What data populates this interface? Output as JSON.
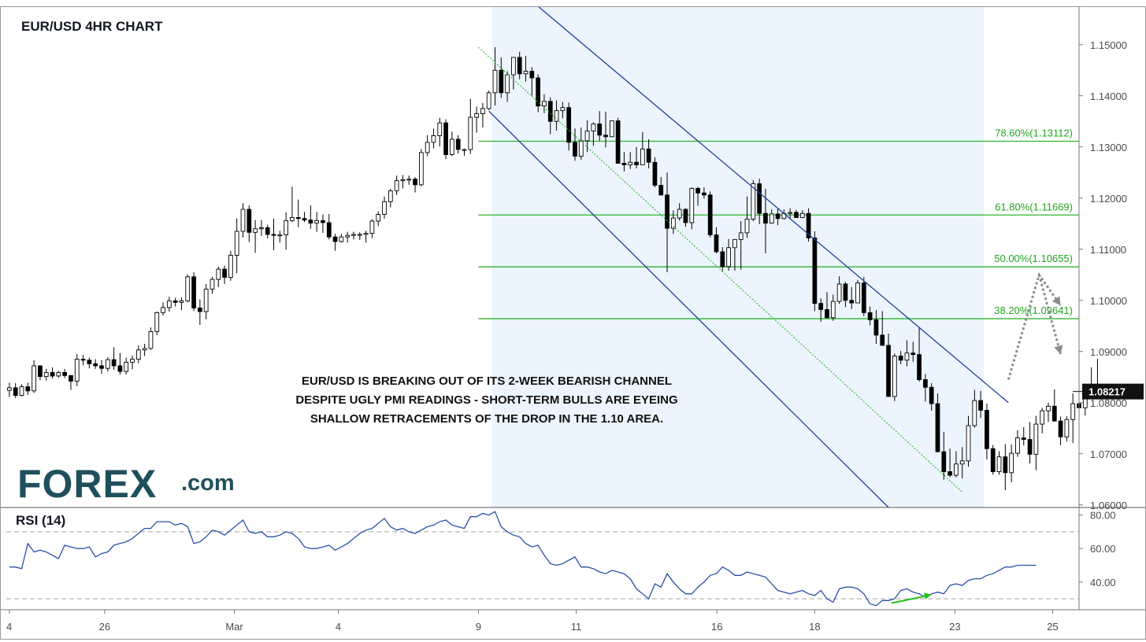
{
  "chart_data": {
    "type": "candlestick",
    "title": "EUR/USD 4HR CHART",
    "annotation": [
      "EUR/USD IS BREAKING OUT OF ITS 2-WEEK BEARISH CHANNEL",
      "DESPITE UGLY PMI READINGS - SHORT-TERM BULLS ARE EYEING",
      "SHALLOW RETRACEMENTS OF THE DROP IN THE 1.10 AREA."
    ],
    "logo": {
      "main": "FOREX",
      "suffix": ".com"
    },
    "y_axis": {
      "ylim": [
        1.0595,
        1.1575
      ],
      "ticks": [
        1.06,
        1.07,
        1.08,
        1.09,
        1.1,
        1.11,
        1.12,
        1.13,
        1.14,
        1.15
      ],
      "tick_labels": [
        "1.06000",
        "1.07000",
        "1.08000",
        "1.09000",
        "1.10000",
        "1.11000",
        "1.12000",
        "1.13000",
        "1.14000",
        "1.15000"
      ]
    },
    "x_axis": {
      "bar_range": [
        -0.5,
        174
      ],
      "tick_labels": [
        {
          "label": "4",
          "bar": 0
        },
        {
          "label": "26",
          "bar": 15.5
        },
        {
          "label": "Mar",
          "bar": 36.6
        },
        {
          "label": "4",
          "bar": 53.5
        },
        {
          "label": "9",
          "bar": 76.3
        },
        {
          "label": "11",
          "bar": 92.2
        },
        {
          "label": "16",
          "bar": 115.1
        },
        {
          "label": "18",
          "bar": 131
        },
        {
          "label": "23",
          "bar": 153.8
        },
        {
          "label": "25",
          "bar": 169.7
        }
      ]
    },
    "current_price": 1.08217,
    "current_price_label": "1.08217",
    "fib_levels": [
      {
        "label": "78.60%(1.13112)",
        "value": 1.13112
      },
      {
        "label": "61.80%(1.11669)",
        "value": 1.11669
      },
      {
        "label": "50.00%(1.10655)",
        "value": 1.10655
      },
      {
        "label": "38.20%(1.09641)",
        "value": 1.09641
      }
    ],
    "fib_start_bar": 76.3,
    "channel": {
      "upper": [
        [
          86,
          1.1575
        ],
        [
          162.5,
          1.08
        ]
      ],
      "lower": [
        [
          78,
          1.137
        ],
        [
          143,
          1.0595
        ]
      ],
      "shade_bars": [
        78.5,
        158.5
      ],
      "midline": [
        [
          76.3,
          1.1495
        ],
        [
          155,
          1.0625
        ]
      ]
    },
    "projection": [
      [
        162.5,
        1.0845
      ],
      [
        167.5,
        1.105
      ],
      [
        171,
        1.099
      ],
      [
        167.5,
        1.105
      ],
      [
        171,
        1.0895
      ]
    ],
    "candles_ohlc": [
      [
        1.0824,
        1.0839,
        1.0811,
        1.0829
      ],
      [
        1.0829,
        1.0838,
        1.0809,
        1.0814
      ],
      [
        1.0814,
        1.0836,
        1.0812,
        1.0831
      ],
      [
        1.0831,
        1.0839,
        1.0815,
        1.0823
      ],
      [
        1.0823,
        1.0883,
        1.0819,
        1.0872
      ],
      [
        1.0872,
        1.0872,
        1.0844,
        1.0851
      ],
      [
        1.0851,
        1.0866,
        1.0843,
        1.0859
      ],
      [
        1.0859,
        1.0869,
        1.0847,
        1.0852
      ],
      [
        1.0852,
        1.0862,
        1.0849,
        1.0859
      ],
      [
        1.0859,
        1.0866,
        1.0848,
        1.0853
      ],
      [
        1.0853,
        1.0853,
        1.0825,
        1.0842
      ],
      [
        1.0842,
        1.0895,
        1.0832,
        1.0885
      ],
      [
        1.0885,
        1.0893,
        1.0873,
        1.0883
      ],
      [
        1.0883,
        1.0888,
        1.0867,
        1.0876
      ],
      [
        1.0876,
        1.0885,
        1.0866,
        1.0872
      ],
      [
        1.0872,
        1.0883,
        1.0856,
        1.0867
      ],
      [
        1.0867,
        1.0889,
        1.0861,
        1.0884
      ],
      [
        1.0884,
        1.0908,
        1.0864,
        1.0872
      ],
      [
        1.0872,
        1.0897,
        1.0855,
        1.0861
      ],
      [
        1.0861,
        1.0888,
        1.0855,
        1.0879
      ],
      [
        1.0879,
        1.0892,
        1.0865,
        1.0885
      ],
      [
        1.0885,
        1.0912,
        1.0877,
        1.0903
      ],
      [
        1.0903,
        1.0915,
        1.0891,
        1.0906
      ],
      [
        1.0906,
        1.0947,
        1.0903,
        1.0939
      ],
      [
        1.0939,
        1.0978,
        1.0932,
        1.0976
      ],
      [
        1.0976,
        1.0996,
        1.097,
        1.0986
      ],
      [
        1.0986,
        1.1007,
        1.0978,
        1.0999
      ],
      [
        1.0999,
        1.1005,
        1.0988,
        1.0996
      ],
      [
        1.0996,
        1.1006,
        1.0981,
        1.0999
      ],
      [
        1.0999,
        1.1051,
        1.0996,
        1.1046
      ],
      [
        1.1046,
        1.1055,
        1.0979,
        1.0985
      ],
      [
        1.0985,
        1.1002,
        1.0952,
        1.0978
      ],
      [
        1.0978,
        1.1032,
        1.0963,
        1.1022
      ],
      [
        1.1022,
        1.1046,
        1.1013,
        1.1041
      ],
      [
        1.1041,
        1.1066,
        1.1026,
        1.1061
      ],
      [
        1.1061,
        1.1068,
        1.1032,
        1.1045
      ],
      [
        1.1045,
        1.1097,
        1.1038,
        1.1088
      ],
      [
        1.1088,
        1.116,
        1.1053,
        1.1135
      ],
      [
        1.1135,
        1.119,
        1.1123,
        1.1178
      ],
      [
        1.1178,
        1.1186,
        1.1114,
        1.1133
      ],
      [
        1.1133,
        1.1157,
        1.1093,
        1.114
      ],
      [
        1.114,
        1.1157,
        1.1126,
        1.1142
      ],
      [
        1.1142,
        1.1148,
        1.1121,
        1.1129
      ],
      [
        1.1129,
        1.116,
        1.1098,
        1.1127
      ],
      [
        1.1127,
        1.1136,
        1.1113,
        1.1128
      ],
      [
        1.1128,
        1.1172,
        1.1099,
        1.1156
      ],
      [
        1.1156,
        1.1222,
        1.1153,
        1.1162
      ],
      [
        1.1162,
        1.1197,
        1.1143,
        1.116
      ],
      [
        1.116,
        1.1173,
        1.1153,
        1.1157
      ],
      [
        1.1157,
        1.1186,
        1.114,
        1.1151
      ],
      [
        1.1151,
        1.1173,
        1.1134,
        1.1156
      ],
      [
        1.1156,
        1.1168,
        1.1132,
        1.1152
      ],
      [
        1.1152,
        1.1169,
        1.1119,
        1.1124
      ],
      [
        1.1124,
        1.113,
        1.1097,
        1.1115
      ],
      [
        1.1115,
        1.113,
        1.1113,
        1.1124
      ],
      [
        1.1124,
        1.1134,
        1.1113,
        1.1127
      ],
      [
        1.1127,
        1.1134,
        1.1119,
        1.1129
      ],
      [
        1.1129,
        1.1133,
        1.1118,
        1.1129
      ],
      [
        1.1129,
        1.1136,
        1.1113,
        1.1131
      ],
      [
        1.1131,
        1.1159,
        1.1122,
        1.1155
      ],
      [
        1.1155,
        1.1174,
        1.1145,
        1.1168
      ],
      [
        1.1168,
        1.1203,
        1.116,
        1.1193
      ],
      [
        1.1193,
        1.1218,
        1.1182,
        1.1214
      ],
      [
        1.1214,
        1.1244,
        1.1206,
        1.1234
      ],
      [
        1.1234,
        1.1245,
        1.1219,
        1.1236
      ],
      [
        1.1236,
        1.1244,
        1.1226,
        1.1237
      ],
      [
        1.1237,
        1.1241,
        1.1211,
        1.1226
      ],
      [
        1.1226,
        1.1296,
        1.1223,
        1.1289
      ],
      [
        1.1289,
        1.1323,
        1.1282,
        1.1309
      ],
      [
        1.1309,
        1.1336,
        1.1297,
        1.1322
      ],
      [
        1.1322,
        1.1357,
        1.1301,
        1.1347
      ],
      [
        1.1347,
        1.1354,
        1.1276,
        1.1285
      ],
      [
        1.1285,
        1.133,
        1.1282,
        1.1315
      ],
      [
        1.1315,
        1.1323,
        1.1287,
        1.1295
      ],
      [
        1.1295,
        1.1297,
        1.1283,
        1.1295
      ],
      [
        1.1295,
        1.1394,
        1.1286,
        1.1358
      ],
      [
        1.1358,
        1.1379,
        1.1328,
        1.1365
      ],
      [
        1.1365,
        1.1386,
        1.1338,
        1.1375
      ],
      [
        1.1375,
        1.141,
        1.1372,
        1.1406
      ],
      [
        1.1406,
        1.1495,
        1.1381,
        1.145
      ],
      [
        1.145,
        1.1475,
        1.1396,
        1.1406
      ],
      [
        1.1406,
        1.1448,
        1.1388,
        1.1441
      ],
      [
        1.1441,
        1.1474,
        1.1412,
        1.1475
      ],
      [
        1.1475,
        1.1486,
        1.1432,
        1.1443
      ],
      [
        1.1443,
        1.1478,
        1.1428,
        1.1448
      ],
      [
        1.1448,
        1.1456,
        1.14,
        1.1435
      ],
      [
        1.1435,
        1.1442,
        1.1368,
        1.138
      ],
      [
        1.138,
        1.1403,
        1.1366,
        1.1389
      ],
      [
        1.1389,
        1.1397,
        1.1325,
        1.135
      ],
      [
        1.135,
        1.1391,
        1.1332,
        1.1371
      ],
      [
        1.1371,
        1.1388,
        1.1356,
        1.1377
      ],
      [
        1.1377,
        1.1387,
        1.1293,
        1.1309
      ],
      [
        1.1309,
        1.1336,
        1.1273,
        1.1282
      ],
      [
        1.1282,
        1.1338,
        1.1275,
        1.1312
      ],
      [
        1.1312,
        1.1352,
        1.129,
        1.1331
      ],
      [
        1.1331,
        1.1348,
        1.1302,
        1.1345
      ],
      [
        1.1345,
        1.137,
        1.1312,
        1.1323
      ],
      [
        1.1323,
        1.1369,
        1.1299,
        1.132
      ],
      [
        1.132,
        1.1352,
        1.1321,
        1.1351
      ],
      [
        1.1351,
        1.1357,
        1.1283,
        1.1268
      ],
      [
        1.1268,
        1.129,
        1.1252,
        1.1265
      ],
      [
        1.1265,
        1.129,
        1.1257,
        1.127
      ],
      [
        1.127,
        1.13,
        1.1258,
        1.1265
      ],
      [
        1.1265,
        1.1329,
        1.1268,
        1.1296
      ],
      [
        1.1296,
        1.1315,
        1.1258,
        1.127
      ],
      [
        1.127,
        1.128,
        1.1221,
        1.1225
      ],
      [
        1.1225,
        1.1241,
        1.1209,
        1.1206
      ],
      [
        1.1206,
        1.125,
        1.1055,
        1.1141
      ],
      [
        1.1141,
        1.1176,
        1.113,
        1.1161
      ],
      [
        1.1161,
        1.119,
        1.1156,
        1.1178
      ],
      [
        1.1178,
        1.118,
        1.1144,
        1.1152
      ],
      [
        1.1152,
        1.1221,
        1.1139,
        1.1219
      ],
      [
        1.1219,
        1.1222,
        1.1185,
        1.121
      ],
      [
        1.121,
        1.1221,
        1.1199,
        1.1206
      ],
      [
        1.1206,
        1.1213,
        1.1123,
        1.1128
      ],
      [
        1.1128,
        1.1143,
        1.1092,
        1.1095
      ],
      [
        1.1095,
        1.1104,
        1.1057,
        1.1066
      ],
      [
        1.1066,
        1.112,
        1.1058,
        1.1103
      ],
      [
        1.1103,
        1.1108,
        1.1058,
        1.1119
      ],
      [
        1.1119,
        1.1155,
        1.106,
        1.1132
      ],
      [
        1.1132,
        1.1203,
        1.1122,
        1.1159
      ],
      [
        1.1159,
        1.1235,
        1.1155,
        1.1228
      ],
      [
        1.1228,
        1.1238,
        1.1149,
        1.117
      ],
      [
        1.117,
        1.1218,
        1.1092,
        1.1151
      ],
      [
        1.1151,
        1.1178,
        1.115,
        1.1169
      ],
      [
        1.1169,
        1.1181,
        1.1147,
        1.116
      ],
      [
        1.116,
        1.1178,
        1.1158,
        1.117
      ],
      [
        1.117,
        1.118,
        1.1159,
        1.1172
      ],
      [
        1.1172,
        1.1177,
        1.1161,
        1.1162
      ],
      [
        1.1162,
        1.1176,
        1.1161,
        1.117
      ],
      [
        1.117,
        1.118,
        1.1115,
        1.1122
      ],
      [
        1.1122,
        1.1135,
        1.0979,
        1.0994
      ],
      [
        1.0994,
        1.1004,
        1.0958,
        1.0982
      ],
      [
        1.0982,
        1.1016,
        1.097,
        1.0966
      ],
      [
        1.0966,
        1.1011,
        1.096,
        1.0998
      ],
      [
        1.0998,
        1.1047,
        1.0993,
        1.1032
      ],
      [
        1.1032,
        1.1036,
        1.0987,
        1.1
      ],
      [
        1.1,
        1.1026,
        1.0983,
        1.0995
      ],
      [
        1.0995,
        1.104,
        1.1012,
        1.1034
      ],
      [
        1.1034,
        1.1046,
        1.0969,
        1.0976
      ],
      [
        1.0976,
        1.0988,
        1.0951,
        1.0962
      ],
      [
        1.0962,
        1.0981,
        1.0915,
        1.0932
      ],
      [
        1.0932,
        1.0979,
        1.0911,
        1.0912
      ],
      [
        1.0912,
        1.0935,
        1.0812,
        1.0812
      ],
      [
        1.0812,
        1.0896,
        1.0803,
        1.0891
      ],
      [
        1.0891,
        1.0901,
        1.0875,
        1.0883
      ],
      [
        1.0883,
        1.0922,
        1.0871,
        1.0897
      ],
      [
        1.0897,
        1.0919,
        1.088,
        1.0894
      ],
      [
        1.0894,
        1.0948,
        1.0841,
        1.0845
      ],
      [
        1.0845,
        1.0856,
        1.0802,
        1.083
      ],
      [
        1.083,
        1.0838,
        1.0784,
        1.0798
      ],
      [
        1.0798,
        1.0818,
        1.0703,
        1.0704
      ],
      [
        1.0704,
        1.0743,
        1.0649,
        1.0665
      ],
      [
        1.0665,
        1.071,
        1.0654,
        1.0658
      ],
      [
        1.0658,
        1.0705,
        1.0654,
        1.068
      ],
      [
        1.068,
        1.0713,
        1.0652,
        1.0686
      ],
      [
        1.0686,
        1.0774,
        1.0675,
        1.0755
      ],
      [
        1.0755,
        1.0825,
        1.0751,
        1.0804
      ],
      [
        1.0804,
        1.0823,
        1.077,
        1.0785
      ],
      [
        1.0785,
        1.0798,
        1.0689,
        1.071
      ],
      [
        1.071,
        1.0717,
        1.0659,
        1.0665
      ],
      [
        1.0665,
        1.0705,
        1.0659,
        1.0694
      ],
      [
        1.0694,
        1.0719,
        1.0629,
        1.0663
      ],
      [
        1.0663,
        1.0718,
        1.0644,
        1.0701
      ],
      [
        1.0701,
        1.0746,
        1.0694,
        1.0731
      ],
      [
        1.0731,
        1.0752,
        1.0716,
        1.0728
      ],
      [
        1.0728,
        1.0762,
        1.0681,
        1.0699
      ],
      [
        1.0699,
        1.0774,
        1.0668,
        1.0758
      ],
      [
        1.0758,
        1.079,
        1.074,
        1.0784
      ],
      [
        1.0784,
        1.08,
        1.0762,
        1.0793
      ],
      [
        1.0793,
        1.0826,
        1.0767,
        1.0764
      ],
      [
        1.0764,
        1.0773,
        1.0717,
        1.0733
      ],
      [
        1.0733,
        1.0773,
        1.0724,
        1.0767
      ],
      [
        1.0767,
        1.0818,
        1.0721,
        1.0798
      ],
      [
        1.0798,
        1.0806,
        1.0778,
        1.079
      ],
      [
        1.079,
        1.0827,
        1.0775,
        1.0823
      ],
      [
        1.0823,
        1.0869,
        1.0812,
        1.0824
      ],
      [
        1.0824,
        1.0886,
        1.0815,
        1.082
      ]
    ],
    "rsi": {
      "label": "RSI (14)",
      "ylim": [
        23.5,
        84.5
      ],
      "ticks": [
        40,
        60,
        80
      ],
      "tick_labels": [
        "40.00",
        "60.00",
        "80.00"
      ],
      "bands": [
        30,
        70
      ],
      "values": [
        49,
        49,
        48,
        63,
        58,
        59,
        58,
        56,
        54,
        62,
        61,
        60,
        60,
        61,
        55,
        57,
        58,
        62,
        63,
        64,
        66,
        69,
        72,
        72,
        76,
        76,
        76,
        74,
        75,
        73,
        63,
        64,
        67,
        71,
        70,
        68,
        71,
        74,
        77,
        70,
        69,
        70,
        67,
        67,
        68,
        70,
        69,
        66,
        61,
        60,
        60,
        61,
        62,
        59,
        61,
        63,
        66,
        69,
        71,
        72,
        75,
        78,
        73,
        71,
        72,
        70,
        69,
        71,
        73,
        74,
        76,
        77,
        74,
        73,
        72,
        79,
        79,
        81,
        80,
        82,
        73,
        70,
        68,
        67,
        63,
        61,
        62,
        56,
        51,
        50,
        51,
        53,
        55,
        49,
        49,
        48,
        46,
        45,
        47,
        46,
        45,
        42,
        36,
        33,
        30,
        39,
        37,
        45,
        40,
        36,
        33,
        33,
        37,
        40,
        44,
        45,
        49,
        47,
        44,
        44,
        46,
        45,
        44,
        43,
        39,
        35,
        34,
        33,
        34,
        35,
        33,
        32,
        35,
        30,
        28,
        36,
        37,
        37,
        36,
        33,
        27,
        26,
        29,
        29,
        30,
        35,
        36,
        34,
        33,
        31,
        33,
        34,
        33,
        38,
        39,
        38,
        41,
        42,
        42,
        44,
        45,
        47,
        49,
        49,
        50,
        50,
        50,
        50
      ],
      "arrow": [
        [
          143.5,
          27.5
        ],
        [
          150,
          32.5
        ]
      ]
    }
  }
}
